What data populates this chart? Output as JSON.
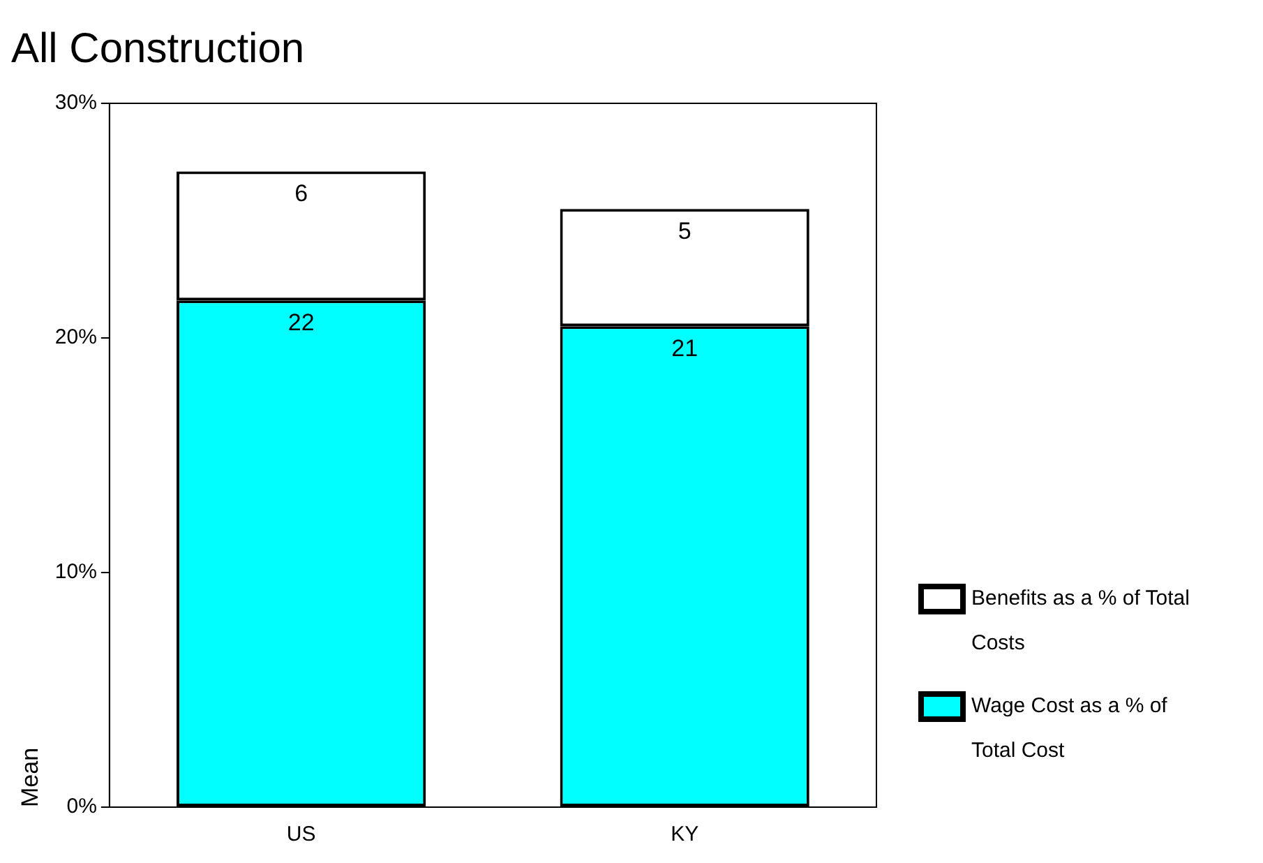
{
  "chart_data": {
    "type": "bar",
    "title": "All Construction",
    "ylabel": "Mean",
    "categories": [
      "US",
      "KY"
    ],
    "stacked": true,
    "series": [
      {
        "name": "Wage Cost as a % of Total Cost",
        "color": "#00ffff",
        "values": [
          21.6,
          20.5
        ],
        "value_labels": [
          "22",
          "21"
        ]
      },
      {
        "name": "Benefits as a % of Total Costs",
        "color": "#ffffff",
        "values": [
          5.5,
          5.0
        ],
        "value_labels": [
          "6",
          "5"
        ]
      }
    ],
    "ylim": [
      0,
      30
    ],
    "yticks": [
      {
        "value": 0,
        "label": "0%"
      },
      {
        "value": 10,
        "label": "10%"
      },
      {
        "value": 20,
        "label": "20%"
      },
      {
        "value": 30,
        "label": "30%"
      }
    ],
    "grid": false,
    "legend": "right"
  }
}
